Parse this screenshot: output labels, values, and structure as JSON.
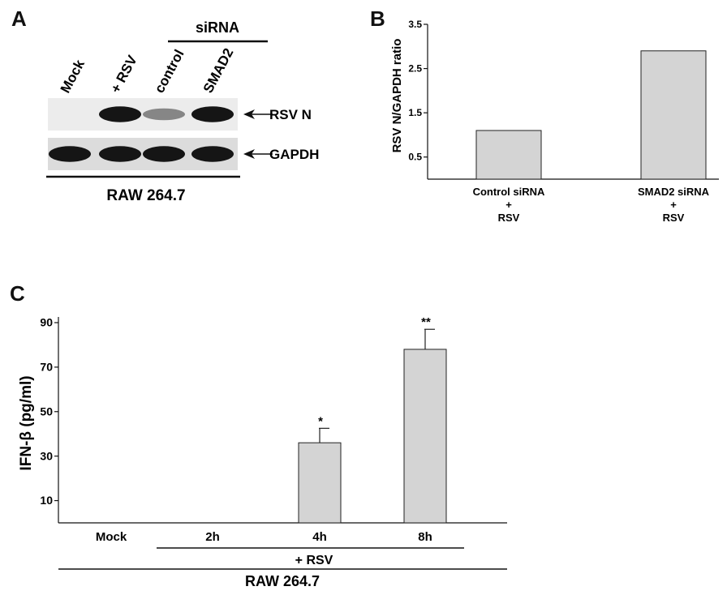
{
  "panels": {
    "a": "A",
    "b": "B",
    "c": "C"
  },
  "blot": {
    "group_label": "siRNA",
    "lanes": [
      "Mock",
      "+ RSV",
      "control",
      "SMAD2"
    ],
    "bands": [
      {
        "name": "RSV N",
        "intensity": [
          0.0,
          0.95,
          0.45,
          0.95
        ]
      },
      {
        "name": "GAPDH",
        "intensity": [
          0.95,
          0.95,
          0.95,
          0.95
        ]
      }
    ],
    "cell_line": "RAW 264.7"
  },
  "chart_b_lines": [
    [
      "Control siRNA",
      "+",
      "RSV"
    ],
    [
      "SMAD2 siRNA",
      "+",
      "RSV"
    ]
  ],
  "chart_c_extra": {
    "treatment_label": "+ RSV",
    "cell_line": "RAW 264.7"
  },
  "chart_data": [
    {
      "type": "bar",
      "categories": [
        "Control siRNA + RSV",
        "SMAD2 siRNA + RSV"
      ],
      "values": [
        1.1,
        2.9
      ],
      "ylabel": "RSV N/GAPDH ratio",
      "ylim": [
        0,
        3.5
      ],
      "yticks": [
        "0.5",
        "1.5",
        "2.5",
        "3.5"
      ],
      "yticks_values": [
        0.5,
        1.5,
        2.5,
        3.5
      ],
      "grid": false,
      "bar_color": "#d4d4d4"
    },
    {
      "type": "bar",
      "categories": [
        "Mock",
        "2h",
        "4h",
        "8h"
      ],
      "values": [
        0,
        0,
        36,
        78
      ],
      "errors": [
        0,
        0,
        6.5,
        9
      ],
      "annotations": [
        "",
        "",
        "*",
        "**"
      ],
      "ylabel": "IFN-β (pg/ml)",
      "ylim": [
        0,
        90
      ],
      "yticks": [
        "10",
        "30",
        "50",
        "70",
        "90"
      ],
      "yticks_values": [
        10,
        30,
        50,
        70,
        90
      ],
      "grid": false,
      "bar_color": "#d4d4d4"
    }
  ]
}
